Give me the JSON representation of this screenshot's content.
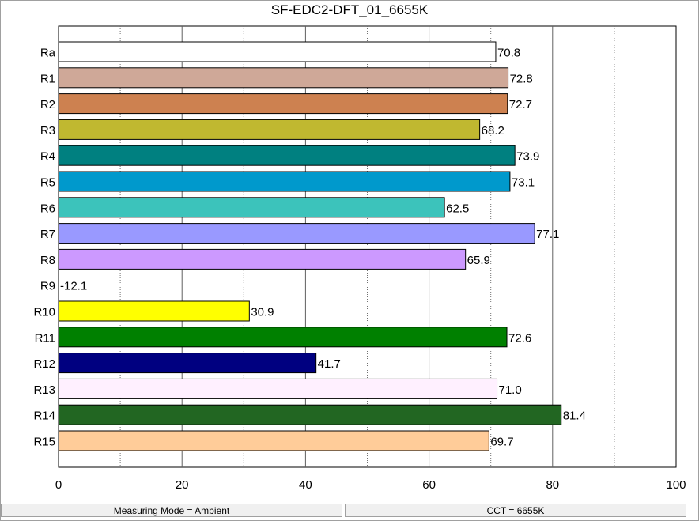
{
  "chart_data": {
    "type": "bar",
    "orientation": "horizontal",
    "title": "SF-EDC2-DFT_01_6655K",
    "categories": [
      "Ra",
      "R1",
      "R2",
      "R3",
      "R4",
      "R5",
      "R6",
      "R7",
      "R8",
      "R9",
      "R10",
      "R11",
      "R12",
      "R13",
      "R14",
      "R15"
    ],
    "values": [
      70.8,
      72.8,
      72.7,
      68.2,
      73.9,
      73.1,
      62.5,
      77.1,
      65.9,
      -12.1,
      30.9,
      72.6,
      41.7,
      71.0,
      81.4,
      69.7
    ],
    "value_labels": [
      "70.8",
      "72.8",
      "72.7",
      "68.2",
      "73.9",
      "73.1",
      "62.5",
      "77.1",
      "65.9",
      "-12.1",
      "30.9",
      "72.6",
      "41.7",
      "71.0",
      "81.4",
      "69.7"
    ],
    "colors": [
      "#ffffff",
      "#cfa898",
      "#cd8150",
      "#c0b830",
      "#008080",
      "#0099cc",
      "#3cc3bb",
      "#9999ff",
      "#cc99ff",
      "#ffffff",
      "#ffff00",
      "#008000",
      "#000080",
      "#fff0ff",
      "#226622",
      "#ffcc99"
    ],
    "xlim": [
      0,
      100
    ],
    "xticks": [
      0,
      20,
      40,
      60,
      80,
      100
    ],
    "xtick_labels": [
      "0",
      "20",
      "40",
      "60",
      "80",
      "100"
    ],
    "grid": true,
    "xlabel": "",
    "ylabel": ""
  },
  "status_bar": {
    "measuring_mode": "Measuring Mode = Ambient",
    "cct": "CCT = 6655K"
  }
}
